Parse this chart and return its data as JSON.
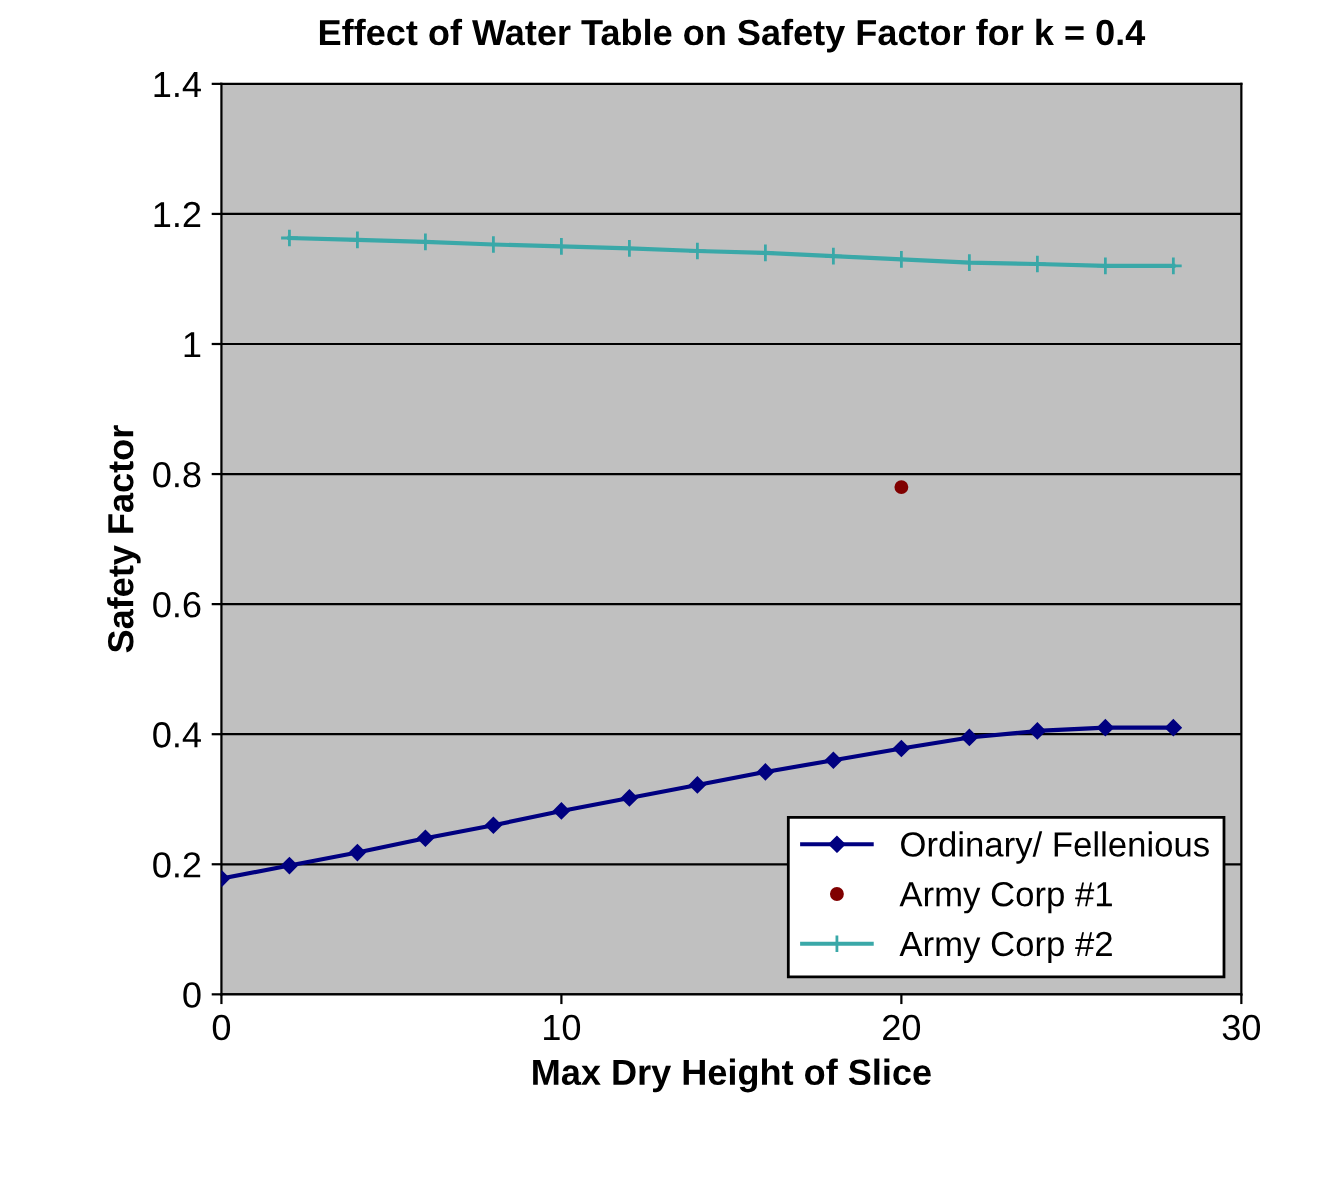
{
  "chart_data": {
    "type": "line",
    "title": "Effect of Water Table on Safety Factor for k = 0.4",
    "xlabel": "Max Dry Height of Slice",
    "ylabel": "Safety Factor",
    "series": [
      {
        "name": "Ordinary/ Fellenious",
        "color": "#000080",
        "marker": "diamond",
        "x": [
          0,
          2,
          4,
          6,
          8,
          10,
          12,
          14,
          16,
          18,
          20,
          22,
          24,
          26,
          28
        ],
        "values": [
          0.178,
          0.198,
          0.218,
          0.24,
          0.26,
          0.282,
          0.302,
          0.322,
          0.342,
          0.36,
          0.378,
          0.395,
          0.405,
          0.41,
          0.41
        ]
      },
      {
        "name": "Army Corp #1",
        "color": "#800000",
        "marker": "circle",
        "type": "scatter",
        "x": [
          20
        ],
        "values": [
          0.78
        ]
      },
      {
        "name": "Army Corp #2",
        "color": "#3aa8a8",
        "marker": "cross",
        "x": [
          2,
          4,
          6,
          8,
          10,
          12,
          14,
          16,
          18,
          20,
          22,
          24,
          26,
          28
        ],
        "values": [
          1.163,
          1.16,
          1.157,
          1.153,
          1.15,
          1.147,
          1.143,
          1.14,
          1.135,
          1.13,
          1.125,
          1.123,
          1.12,
          1.12
        ]
      }
    ],
    "xlim": [
      0,
      30
    ],
    "xticks": [
      0,
      10,
      20,
      30
    ],
    "ylim": [
      0,
      1.4
    ],
    "yticks": [
      0,
      0.2,
      0.4,
      0.6,
      0.8,
      1,
      1.2,
      1.4
    ],
    "grid": "y",
    "legend": "bottom right",
    "line_style": "solid"
  }
}
